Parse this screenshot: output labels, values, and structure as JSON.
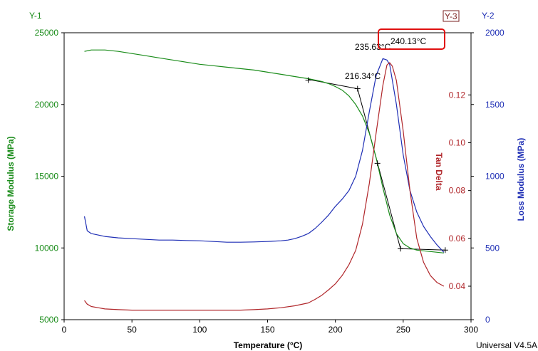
{
  "header": {
    "y1_tag": "Y-1",
    "y3_tag": "Y-3",
    "y2_tag": "Y-2"
  },
  "footer": {
    "version": "Universal V4.5A"
  },
  "colors": {
    "storage": "#1a8c1a",
    "loss": "#1f2fb5",
    "tan": "#b0262a",
    "y3_box": "#7a1f1f",
    "highlight": "#e01010"
  },
  "chart_data": {
    "type": "line",
    "xlabel": "Temperature (°C)",
    "xlim": [
      0,
      300
    ],
    "xticks": [
      0,
      50,
      100,
      150,
      200,
      250,
      300
    ],
    "axes": {
      "y1": {
        "label": "Storage Modulus (MPa)",
        "lim": [
          5000,
          25000
        ],
        "ticks": [
          5000,
          10000,
          15000,
          20000,
          25000
        ]
      },
      "y2": {
        "label": "Loss Modulus (MPa)",
        "lim": [
          0,
          2000
        ],
        "ticks": [
          0,
          500,
          1000,
          1500,
          2000
        ]
      },
      "y3": {
        "label": "Tan Delta",
        "lim": [
          0.026,
          0.146
        ],
        "ticks": [
          0.04,
          0.06,
          0.08,
          0.1,
          0.12
        ]
      }
    },
    "series": [
      {
        "key": "storage",
        "axis": "y1",
        "x": [
          15,
          20,
          30,
          40,
          50,
          60,
          70,
          80,
          90,
          100,
          110,
          120,
          130,
          140,
          150,
          160,
          170,
          180,
          190,
          195,
          200,
          205,
          210,
          215,
          220,
          225,
          230,
          235,
          240,
          245,
          250,
          255,
          260,
          265,
          270,
          275,
          280
        ],
        "y": [
          23700,
          23800,
          23800,
          23700,
          23550,
          23400,
          23250,
          23100,
          22950,
          22800,
          22700,
          22600,
          22500,
          22400,
          22250,
          22100,
          21950,
          21800,
          21600,
          21450,
          21250,
          21000,
          20600,
          20000,
          19200,
          18000,
          16300,
          14200,
          12300,
          11000,
          10300,
          10000,
          9850,
          9800,
          9750,
          9700,
          9650
        ]
      },
      {
        "key": "loss",
        "axis": "y2",
        "x": [
          15,
          17,
          20,
          25,
          30,
          40,
          50,
          60,
          70,
          80,
          90,
          100,
          110,
          120,
          130,
          140,
          150,
          160,
          165,
          170,
          175,
          180,
          185,
          190,
          195,
          200,
          205,
          210,
          215,
          220,
          225,
          230,
          235,
          238,
          240,
          245,
          250,
          255,
          260,
          265,
          270,
          275,
          280
        ],
        "y": [
          720,
          620,
          600,
          590,
          580,
          570,
          565,
          560,
          555,
          555,
          552,
          550,
          545,
          540,
          540,
          542,
          545,
          550,
          555,
          565,
          580,
          600,
          635,
          680,
          730,
          790,
          840,
          900,
          1000,
          1180,
          1450,
          1700,
          1820,
          1810,
          1780,
          1500,
          1150,
          900,
          750,
          650,
          580,
          520,
          470
        ]
      },
      {
        "key": "tan",
        "axis": "y3",
        "x": [
          15,
          17,
          20,
          25,
          30,
          40,
          50,
          60,
          70,
          80,
          90,
          100,
          110,
          120,
          130,
          140,
          150,
          160,
          170,
          180,
          185,
          190,
          195,
          200,
          205,
          210,
          215,
          220,
          225,
          230,
          235,
          238,
          240,
          242,
          245,
          250,
          255,
          260,
          265,
          270,
          275,
          280
        ],
        "y": [
          0.034,
          0.0325,
          0.0315,
          0.031,
          0.0305,
          0.0302,
          0.03,
          0.03,
          0.03,
          0.03,
          0.03,
          0.03,
          0.03,
          0.03,
          0.03,
          0.0302,
          0.0305,
          0.031,
          0.0318,
          0.033,
          0.0345,
          0.0362,
          0.0385,
          0.041,
          0.0445,
          0.049,
          0.055,
          0.066,
          0.083,
          0.104,
          0.124,
          0.1325,
          0.1335,
          0.132,
          0.126,
          0.105,
          0.08,
          0.06,
          0.05,
          0.0445,
          0.0415,
          0.04
        ]
      }
    ],
    "markers": [
      {
        "axis": "y1",
        "x": 180,
        "y": 21700
      },
      {
        "axis": "y1",
        "x": 216.34,
        "y": 21100
      },
      {
        "axis": "y1",
        "x": 231,
        "y": 15900
      },
      {
        "axis": "y1",
        "x": 248,
        "y": 9950
      },
      {
        "axis": "y1",
        "x": 281,
        "y": 9850
      }
    ],
    "tangents": [
      {
        "axis": "y1",
        "x": [
          180,
          216.34
        ],
        "y": [
          21750,
          21100
        ]
      },
      {
        "axis": "y1",
        "x": [
          216.34,
          248
        ],
        "y": [
          21100,
          9950
        ]
      },
      {
        "axis": "y1",
        "x": [
          248,
          281
        ],
        "y": [
          9950,
          9850
        ]
      }
    ],
    "annotations": [
      {
        "key": "storage-onset",
        "text": "216.34°C",
        "x": 216.34,
        "axis": "y1",
        "y": 21100
      },
      {
        "key": "loss-peak",
        "text": "235.63°C",
        "x": 235.63,
        "axis": "y2",
        "y": 1820
      },
      {
        "key": "tan-peak",
        "text": "240.13°C",
        "x": 240.13,
        "axis": "y3",
        "y": 0.1335,
        "highlighted": true
      }
    ]
  }
}
